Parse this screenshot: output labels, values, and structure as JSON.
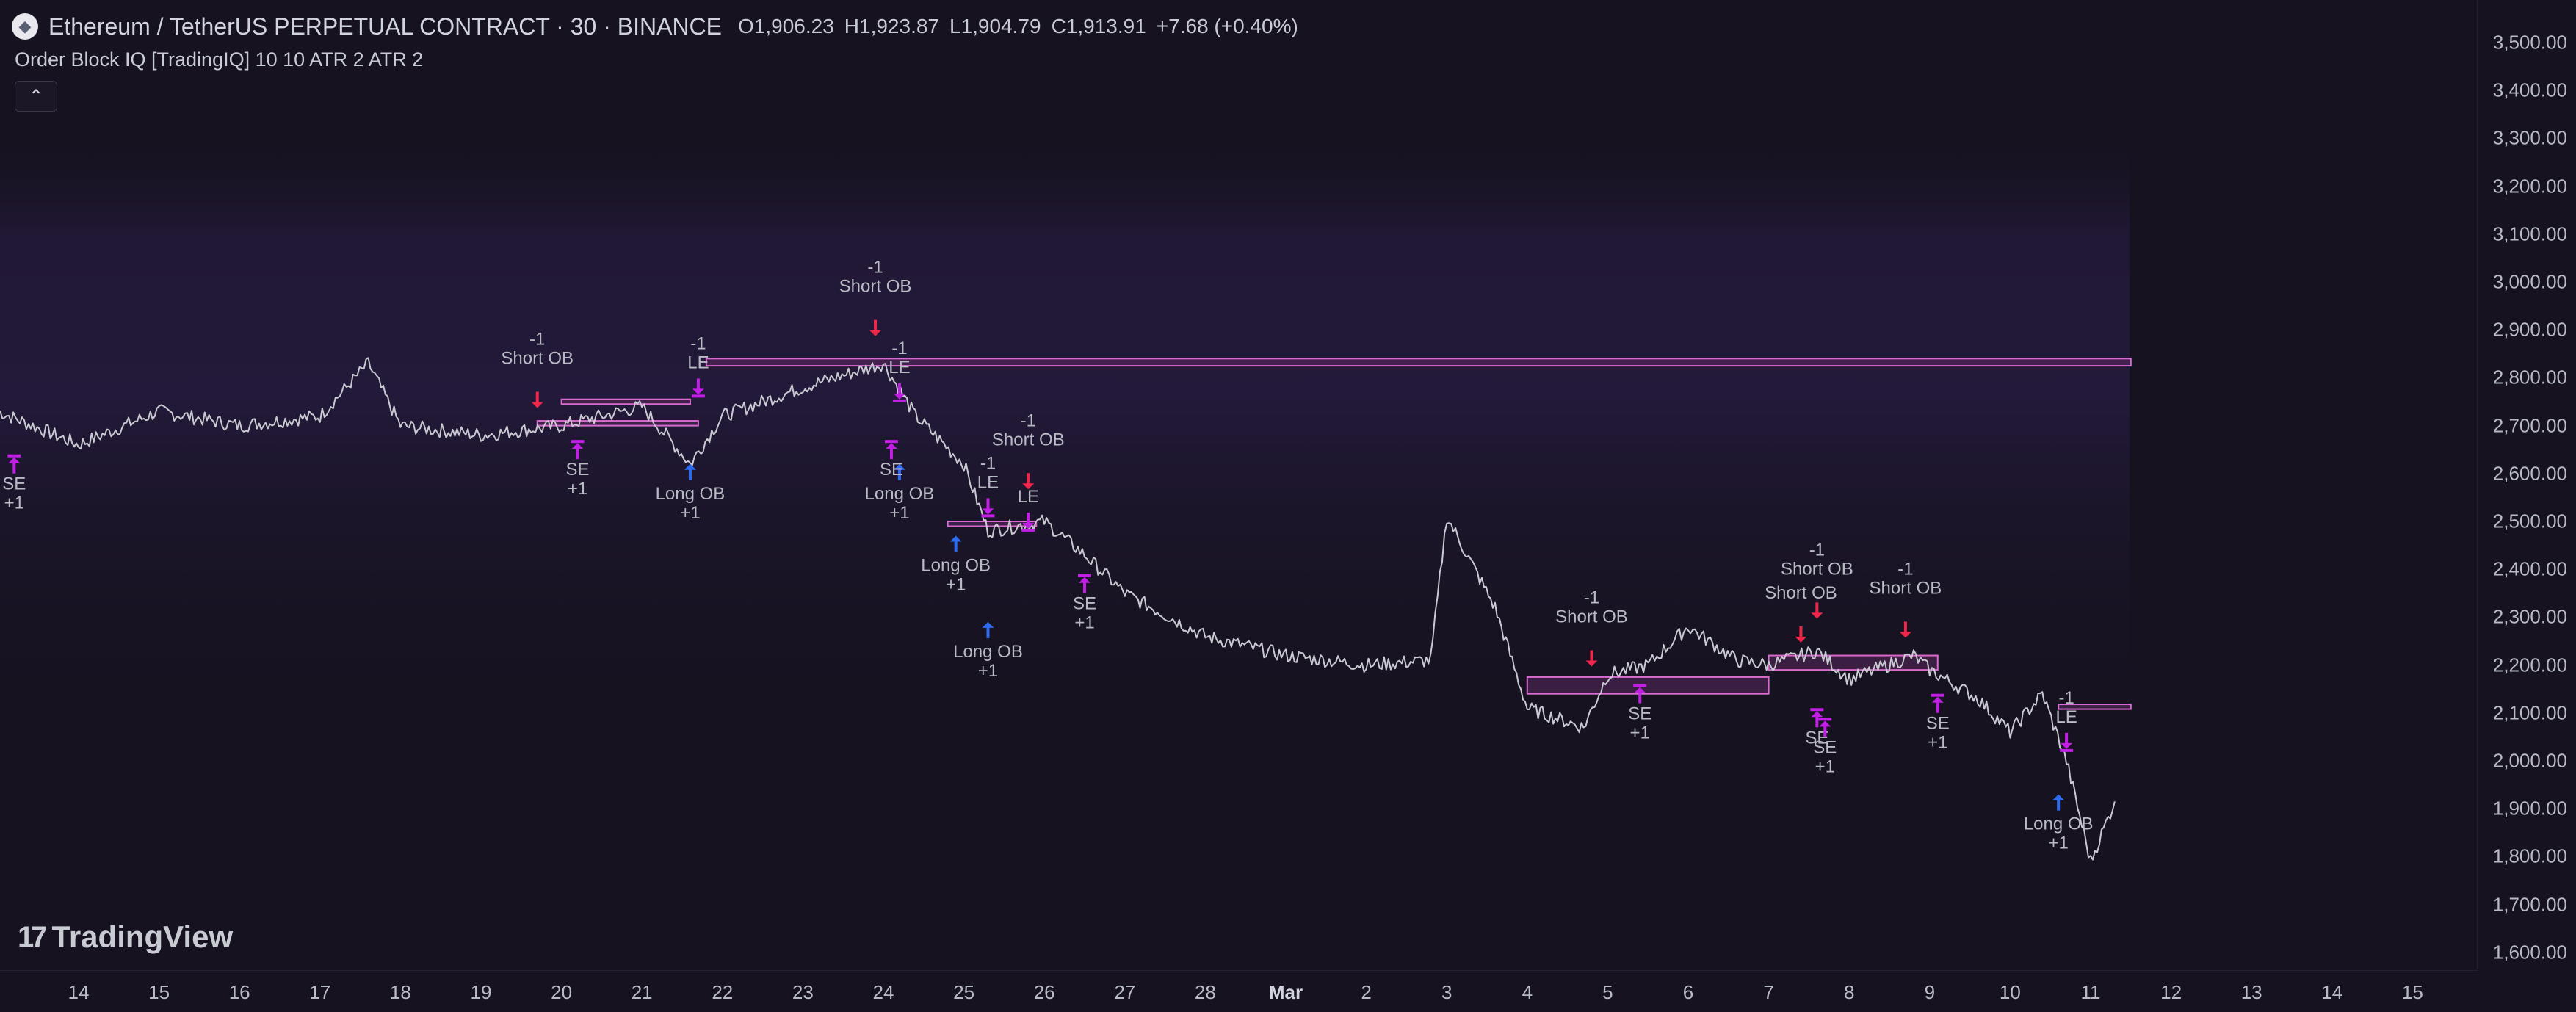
{
  "header": {
    "symbol_title": "Ethereum / TetherUS PERPETUAL CONTRACT · 30 · BINANCE",
    "open": "O1,906.23",
    "high": "H1,923.87",
    "low": "L1,904.79",
    "close": "C1,913.91",
    "change": "+7.68 (+0.40%)",
    "logo_icon": "ethereum-logo-icon"
  },
  "indicator": {
    "label": "Order Block IQ [TradingIQ] 10 10 ATR 2 ATR 2"
  },
  "collapse_button": {
    "icon": "chevron-up-icon",
    "glyph": "⌃"
  },
  "price_axis": [
    "3,500.00",
    "3,400.00",
    "3,300.00",
    "3,200.00",
    "3,100.00",
    "3,000.00",
    "2,900.00",
    "2,800.00",
    "2,700.00",
    "2,600.00",
    "2,500.00",
    "2,400.00",
    "2,300.00",
    "2,200.00",
    "2,100.00",
    "2,000.00",
    "1,900.00",
    "1,800.00",
    "1,700.00",
    "1,600.00"
  ],
  "time_axis": [
    {
      "label": "14"
    },
    {
      "label": "15"
    },
    {
      "label": "16"
    },
    {
      "label": "17"
    },
    {
      "label": "18"
    },
    {
      "label": "19"
    },
    {
      "label": "20"
    },
    {
      "label": "21"
    },
    {
      "label": "22"
    },
    {
      "label": "23"
    },
    {
      "label": "24"
    },
    {
      "label": "25"
    },
    {
      "label": "26"
    },
    {
      "label": "27"
    },
    {
      "label": "28"
    },
    {
      "label": "Mar",
      "bold": true
    },
    {
      "label": "2"
    },
    {
      "label": "3"
    },
    {
      "label": "4"
    },
    {
      "label": "5"
    },
    {
      "label": "6"
    },
    {
      "label": "7"
    },
    {
      "label": "8"
    },
    {
      "label": "9"
    },
    {
      "label": "10"
    },
    {
      "label": "11"
    },
    {
      "label": "12"
    },
    {
      "label": "13"
    },
    {
      "label": "14"
    },
    {
      "label": "15"
    }
  ],
  "watermark": {
    "text": "TradingView",
    "icon": "tradingview-logo-icon"
  },
  "colors": {
    "background": "#16121f",
    "price_line": "#c9c9d2",
    "short_arrow": "#f0264a",
    "long_arrow": "#2d6cf0",
    "exit_marker": "#c21ee6",
    "order_block_border": "#d86bd0",
    "order_block_fill": "#5a2a5e"
  },
  "chart_data": {
    "type": "line",
    "title": "",
    "xlabel": "",
    "ylabel": "",
    "ylim": [
      1600,
      3500
    ],
    "x": [
      "Feb 13",
      "Feb 14",
      "Feb 15",
      "Feb 16",
      "Feb 17",
      "Feb 17.6",
      "Feb 18",
      "Feb 19",
      "Feb 20",
      "Feb 21",
      "Feb 21.6",
      "Feb 22",
      "Feb 23",
      "Feb 24",
      "Feb 24.4",
      "Feb 25",
      "Feb 25.3",
      "Feb 26",
      "Feb 26.5",
      "Feb 27",
      "Feb 28",
      "Mar 1",
      "Mar 2",
      "Mar 2.8",
      "Mar 3",
      "Mar 3.6",
      "Mar 4",
      "Mar 4.7",
      "Mar 5",
      "Mar 5.5",
      "Mar 6",
      "Mar 6.6",
      "Mar 7",
      "Mar 7.6",
      "Mar 8",
      "Mar 8.8",
      "Mar 9",
      "Mar 9.6",
      "Mar 10",
      "Mar 10.4",
      "Mar 10.7",
      "Mar 11",
      "Mar 11.3"
    ],
    "series": [
      {
        "values": [
          2730,
          2660,
          2730,
          2700,
          2720,
          2830,
          2700,
          2680,
          2700,
          2740,
          2620,
          2720,
          2780,
          2830,
          2720,
          2620,
          2480,
          2500,
          2430,
          2350,
          2260,
          2220,
          2200,
          2210,
          2510,
          2320,
          2110,
          2070,
          2180,
          2200,
          2280,
          2210,
          2200,
          2230,
          2170,
          2220,
          2190,
          2130,
          2060,
          2140,
          2000,
          1790,
          1915
        ]
      }
    ],
    "annotations": {
      "short_ob_signals": [
        {
          "x": "Feb 19.7",
          "price": 2780,
          "text": [
            "-1",
            "Short OB"
          ]
        },
        {
          "x": "Feb 23.9",
          "price": 2930,
          "text": [
            "-1",
            "Short OB"
          ]
        },
        {
          "x": "Feb 25.8",
          "price": 2610,
          "text": [
            "-1",
            "Short OB"
          ]
        },
        {
          "x": "Mar 4.8",
          "price": 2240,
          "text": [
            "-1",
            "Short OB"
          ]
        },
        {
          "x": "Mar 7.4",
          "price": 2290,
          "text": [
            "Short OB"
          ]
        },
        {
          "x": "Mar 7.6",
          "price": 2340,
          "text": [
            "-1",
            "Short OB"
          ]
        },
        {
          "x": "Mar 8.7",
          "price": 2300,
          "text": [
            "-1",
            "Short OB"
          ]
        }
      ],
      "long_ob_signals": [
        {
          "x": "Feb 21.6",
          "price": 2620,
          "text": [
            "Long OB",
            "+1"
          ]
        },
        {
          "x": "Feb 24.2",
          "price": 2620,
          "text": [
            "Long OB",
            "+1"
          ]
        },
        {
          "x": "Feb 24.9",
          "price": 2470,
          "text": [
            "Long OB",
            "+1"
          ]
        },
        {
          "x": "Feb 25.3",
          "price": 2290,
          "text": [
            "Long OB",
            "+1"
          ]
        },
        {
          "x": "Mar 10.6",
          "price": 1930,
          "text": [
            "Long OB",
            "+1"
          ]
        }
      ],
      "short_exit_signals": [
        {
          "x": "Feb 13.2",
          "price": 2640,
          "text": [
            "SE",
            "+1"
          ]
        },
        {
          "x": "Feb 20.2",
          "price": 2670,
          "text": [
            "SE",
            "+1"
          ]
        },
        {
          "x": "Feb 24.1",
          "price": 2670,
          "text": [
            "SE"
          ]
        },
        {
          "x": "Feb 26.5",
          "price": 2390,
          "text": [
            "SE",
            "+1"
          ]
        },
        {
          "x": "Mar 5.4",
          "price": 2160,
          "text": [
            "SE",
            "+1"
          ]
        },
        {
          "x": "Mar 7.6",
          "price": 2110,
          "text": [
            "SE"
          ]
        },
        {
          "x": "Mar 7.7",
          "price": 2090,
          "text": [
            "SE",
            "+1"
          ]
        },
        {
          "x": "Mar 9.1",
          "price": 2140,
          "text": [
            "SE",
            "+1"
          ]
        }
      ],
      "long_exit_signals": [
        {
          "x": "Feb 21.7",
          "price": 2820,
          "text": [
            "-1",
            "LE"
          ]
        },
        {
          "x": "Feb 24.2",
          "price": 2810,
          "text": [
            "-1",
            "LE"
          ]
        },
        {
          "x": "Feb 25.3",
          "price": 2570,
          "text": [
            "-1",
            "LE"
          ]
        },
        {
          "x": "Feb 25.8",
          "price": 2540,
          "text": [
            "LE"
          ]
        },
        {
          "x": "Mar 10.7",
          "price": 2080,
          "text": [
            "-1",
            "LE"
          ]
        }
      ],
      "order_blocks": [
        {
          "from": "Feb 21.8",
          "to": "Mar 11.5",
          "top": 2840,
          "bottom": 2825
        },
        {
          "from": "Feb 19.7",
          "to": "Feb 21.7",
          "top": 2710,
          "bottom": 2700
        },
        {
          "from": "Feb 20.0",
          "to": "Feb 21.6",
          "top": 2755,
          "bottom": 2745
        },
        {
          "from": "Feb 24.8",
          "to": "Feb 25.9",
          "top": 2500,
          "bottom": 2490
        },
        {
          "from": "Mar 4.0",
          "to": "Mar 7.0",
          "top": 2175,
          "bottom": 2140
        },
        {
          "from": "Mar 7.0",
          "to": "Mar 9.1",
          "top": 2220,
          "bottom": 2190
        },
        {
          "from": "Mar 10.6",
          "to": "Mar 11.5",
          "top": 2118,
          "bottom": 2108
        }
      ]
    }
  }
}
